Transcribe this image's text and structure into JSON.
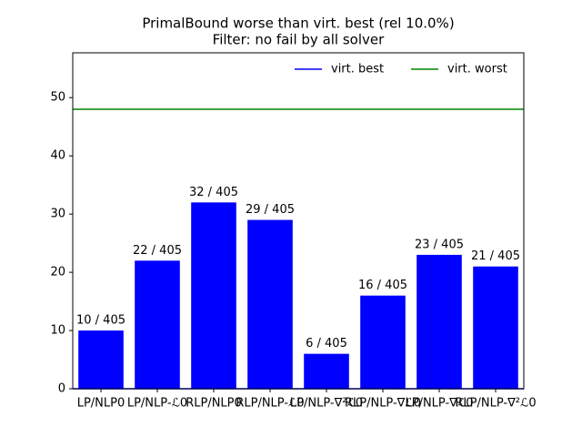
{
  "chart_data": {
    "type": "bar",
    "title": "PrimalBound worse than virt. best (rel 10.0%)",
    "subtitle": "Filter: no fail by all solver",
    "categories": [
      "LP/NLP0",
      "LP/NLP-ℒ0",
      "RLP/NLP0",
      "RLP/NLP-ℒ0",
      "LP/NLP-∇²ℒ0",
      "RLP/NLP-∇ℒ0",
      "LP/NLP-∇ℒ0",
      "RLP/NLP-∇²ℒ0"
    ],
    "values": [
      10,
      22,
      32,
      29,
      6,
      16,
      23,
      21
    ],
    "value_labels": [
      "10 / 405",
      "22 / 405",
      "32 / 405",
      "29 / 405",
      "6 / 405",
      "16 / 405",
      "23 / 405",
      "21 / 405"
    ],
    "color": "blue",
    "lines": [
      {
        "name": "virt. best",
        "color": "blue",
        "value": 0
      },
      {
        "name": "virt. worst",
        "color": "green",
        "value": 48
      }
    ],
    "legend": "upper right",
    "ylim": [
      0,
      57.7
    ],
    "yticks": [
      0,
      10,
      20,
      30,
      40,
      50
    ]
  }
}
